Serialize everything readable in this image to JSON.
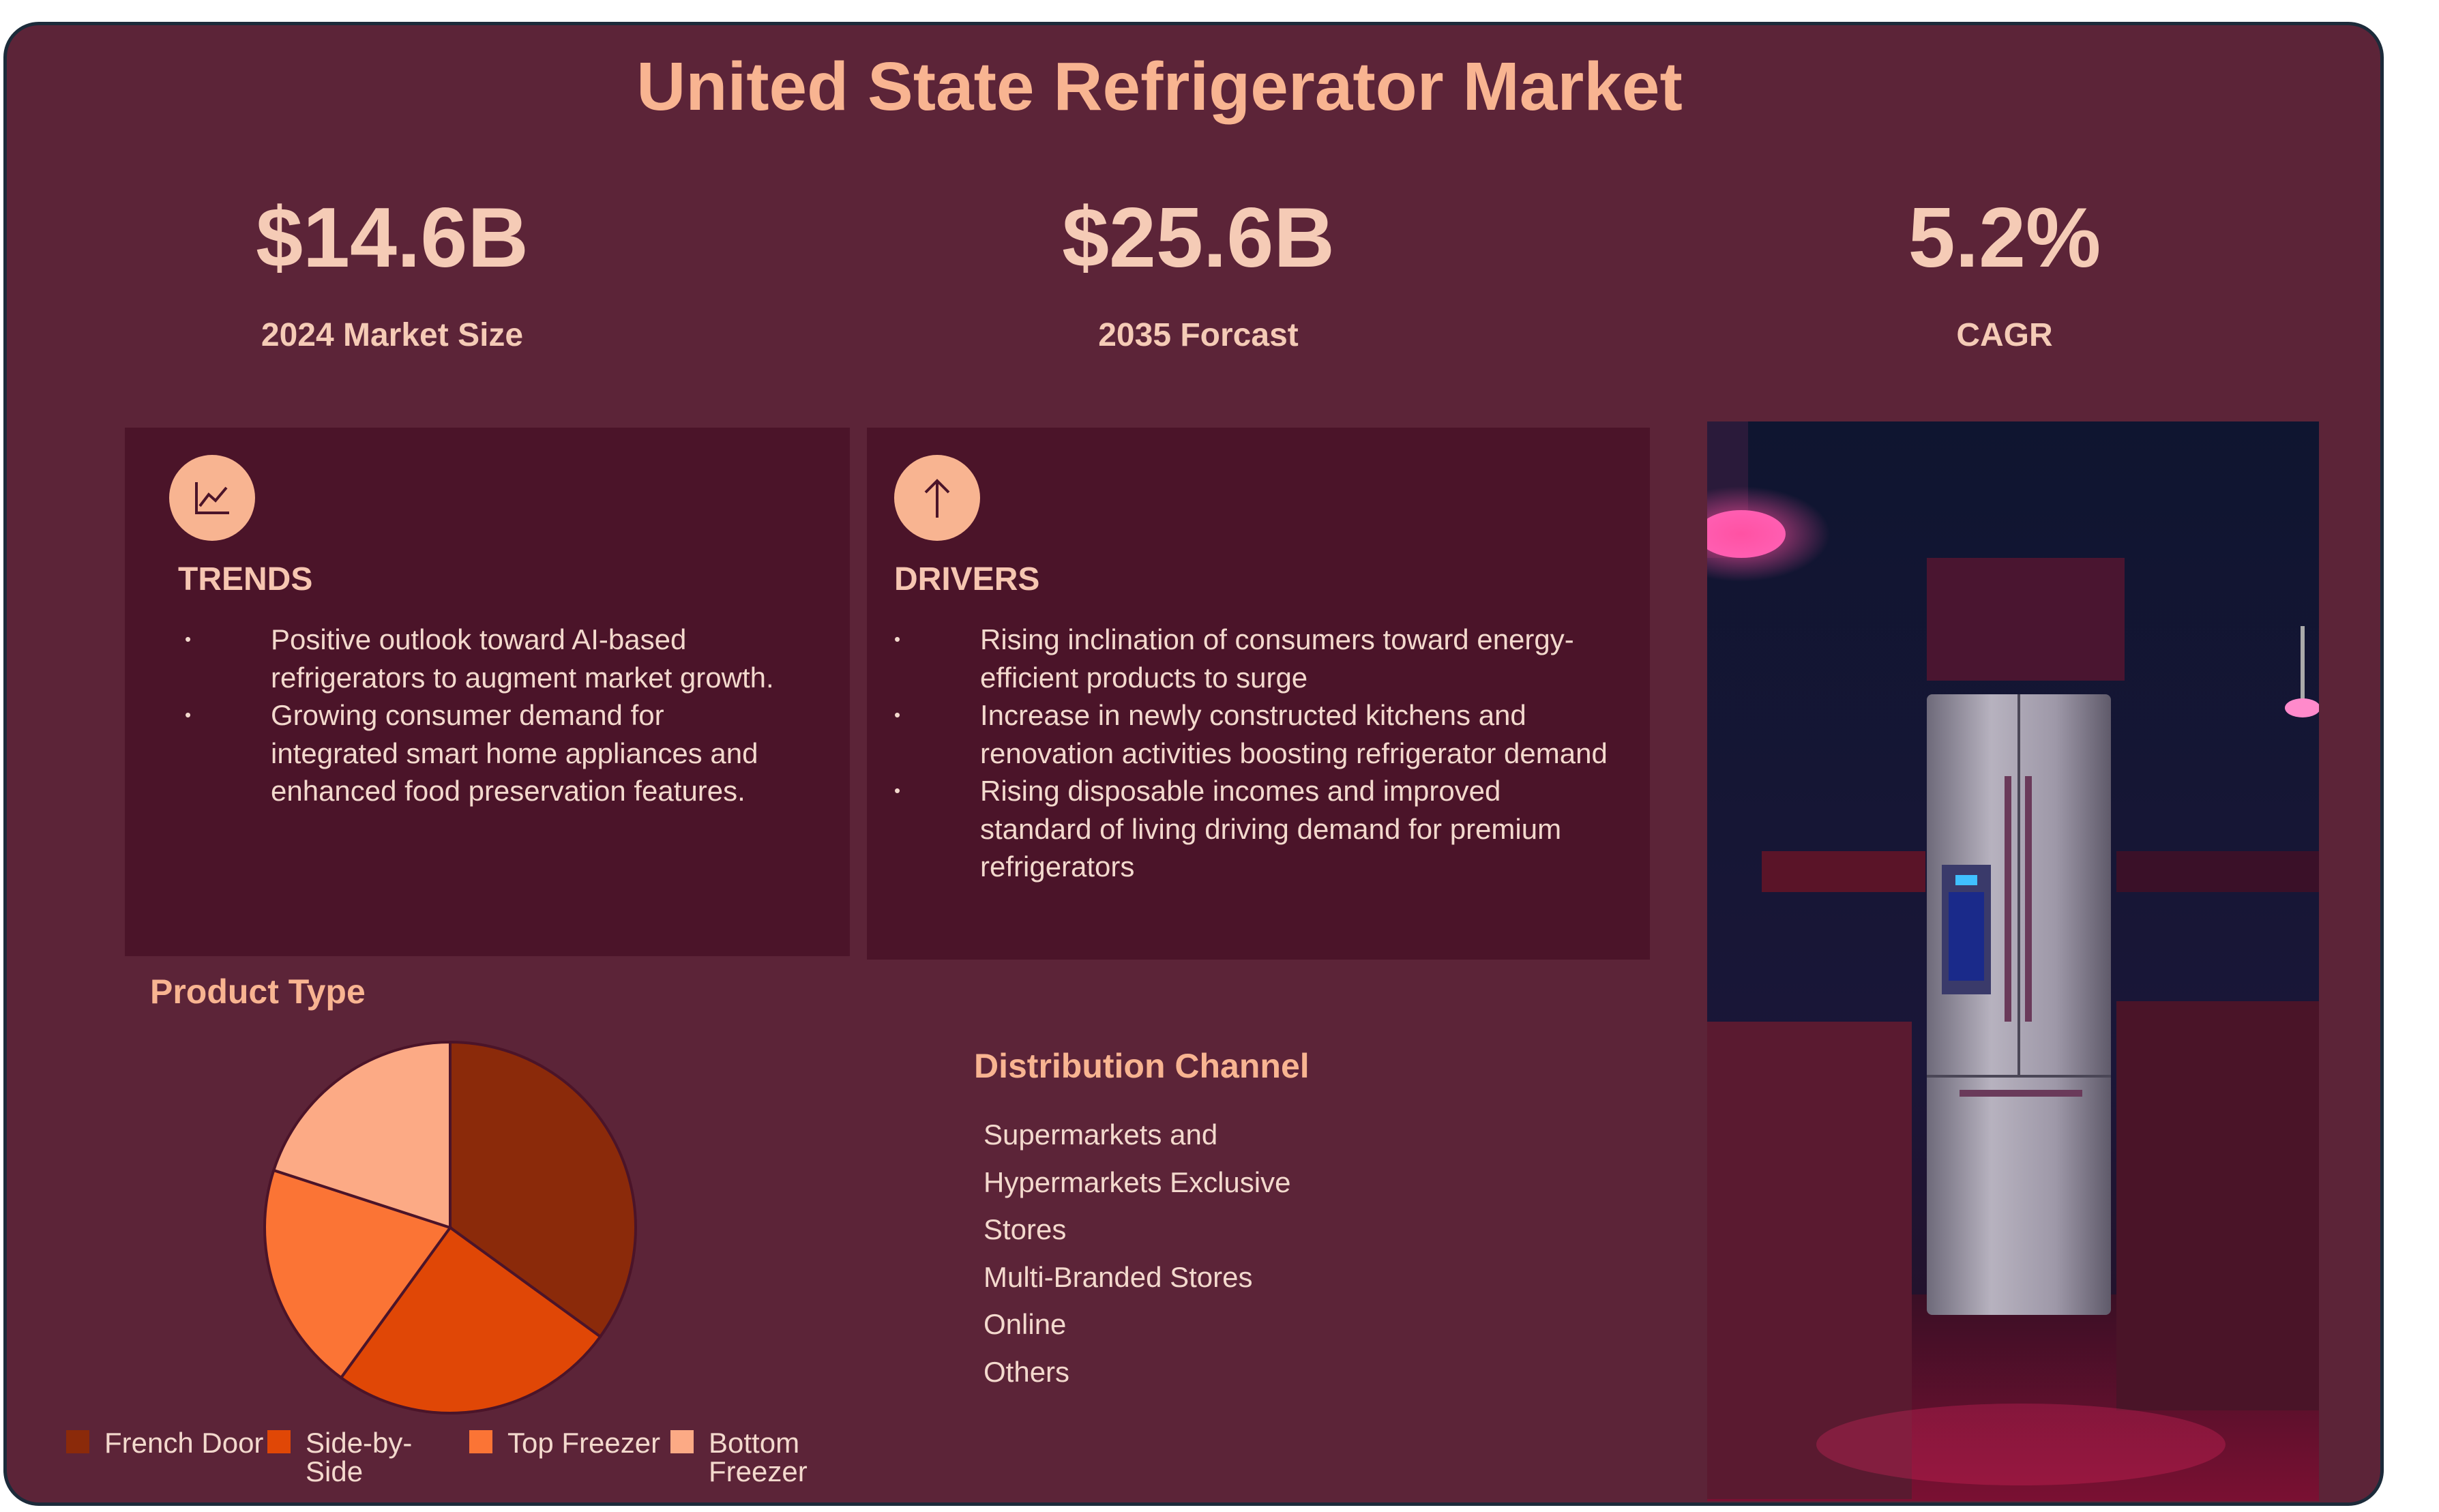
{
  "title": "United State Refrigerator Market",
  "kpis": [
    {
      "value": "$14.6B",
      "label": "2024 Market Size"
    },
    {
      "value": "$25.6B",
      "label": "2035 Forcast"
    },
    {
      "value": "5.2%",
      "label": "CAGR"
    }
  ],
  "trends": {
    "heading": "TRENDS",
    "icon": "line-chart-icon",
    "items": [
      "Positive outlook toward AI-based refrigerators to augment market growth.",
      "Growing consumer demand for integrated smart home appliances and enhanced food preservation features."
    ]
  },
  "drivers": {
    "heading": "DRIVERS",
    "icon": "arrow-up-icon",
    "items": [
      "Rising inclination of consumers toward energy-efficient products to surge",
      "Increase in newly constructed kitchens and renovation activities boosting refrigerator demand",
      "Rising disposable incomes and improved standard of living driving demand for premium refrigerators"
    ]
  },
  "product_type": {
    "title": "Product Type"
  },
  "distribution": {
    "title": "Distribution Channel",
    "items": [
      "Supermarkets and Hypermarkets Exclusive Stores",
      "Multi-Branded Stores",
      "Online",
      "Others"
    ]
  },
  "chart_data": {
    "type": "pie",
    "title": "Product Type",
    "categories": [
      "French Door",
      "Side-by-Side",
      "Top Freezer",
      "Bottom Freezer"
    ],
    "values": [
      35,
      25,
      20,
      20
    ],
    "colors": [
      "#8b2a0a",
      "#e04706",
      "#fb7435",
      "#fcaa85"
    ],
    "legend_position": "bottom"
  },
  "colors": {
    "background": "#5c2438",
    "card": "#4b1429",
    "accent": "#f8b491",
    "text": "#f3d9cd"
  }
}
